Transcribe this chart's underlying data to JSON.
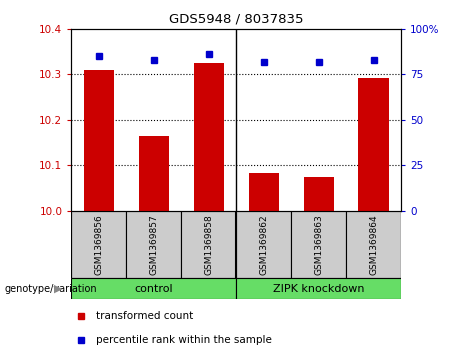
{
  "title": "GDS5948 / 8037835",
  "samples": [
    "GSM1369856",
    "GSM1369857",
    "GSM1369858",
    "GSM1369862",
    "GSM1369863",
    "GSM1369864"
  ],
  "bar_values": [
    10.31,
    10.165,
    10.325,
    10.082,
    10.073,
    10.293
  ],
  "percentile_values": [
    85,
    83,
    86,
    82,
    82,
    83
  ],
  "bar_color": "#cc0000",
  "dot_color": "#0000cc",
  "ylim_left": [
    10.0,
    10.4
  ],
  "ylim_right": [
    0,
    100
  ],
  "yticks_left": [
    10.0,
    10.1,
    10.2,
    10.3,
    10.4
  ],
  "yticks_right": [
    0,
    25,
    50,
    75,
    100
  ],
  "groups": [
    {
      "label": "control",
      "span": [
        0,
        3
      ]
    },
    {
      "label": "ZIPK knockdown",
      "span": [
        3,
        6
      ]
    }
  ],
  "bar_color_red": "#cc0000",
  "dot_color_blue": "#0000cc",
  "grid_color": "black",
  "legend_items": [
    {
      "label": "transformed count",
      "color": "#cc0000"
    },
    {
      "label": "percentile rank within the sample",
      "color": "#0000cc"
    }
  ],
  "genotype_label": "genotype/variation",
  "bar_width": 0.55,
  "sample_box_color": "#cccccc",
  "group_box_color": "#66dd66",
  "figsize": [
    4.61,
    3.63
  ],
  "dpi": 100
}
